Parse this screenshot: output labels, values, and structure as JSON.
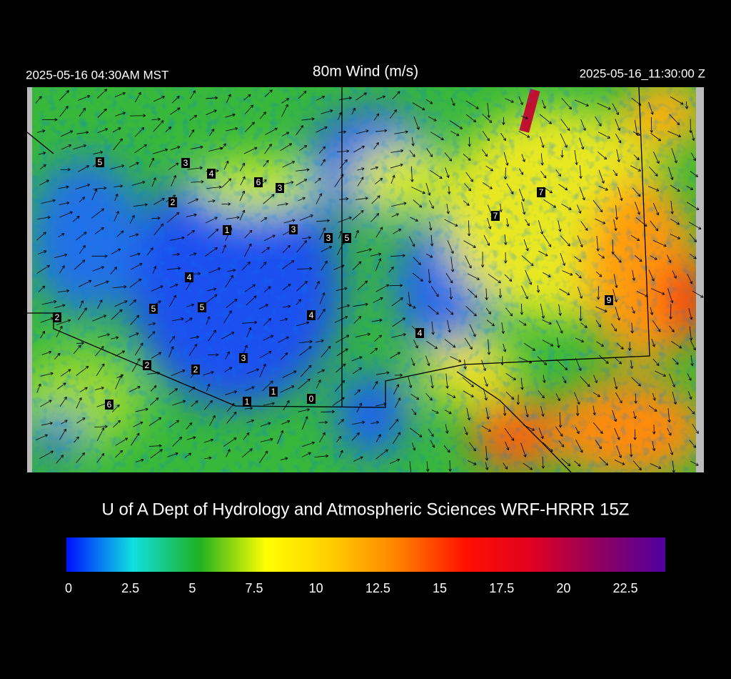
{
  "header": {
    "left": "2025-05-16 04:30AM MST",
    "title": "80m Wind (m/s)",
    "right": "2025-05-16_11:30:00 Z"
  },
  "map": {
    "stations": [
      5,
      3,
      4,
      6,
      3,
      2,
      1,
      3,
      3,
      5,
      7,
      7,
      4,
      5,
      5,
      2,
      4,
      9,
      4,
      3,
      2,
      2,
      1,
      1,
      0,
      6
    ]
  },
  "credit": "U of A Dept of Hydrology and Atmospheric Sciences WRF-HRRR 15Z",
  "colorbar": {
    "range": [
      0,
      24.2
    ],
    "ticks": [
      0,
      2.5,
      5,
      7.5,
      10,
      12.5,
      15,
      17.5,
      20,
      22.5
    ],
    "colors": [
      "#0010ff",
      "#10e0e0",
      "#20b020",
      "#ffff00",
      "#ffcc00",
      "#ff8000",
      "#ff1000",
      "#e00020",
      "#900060",
      "#5000a0"
    ]
  }
}
